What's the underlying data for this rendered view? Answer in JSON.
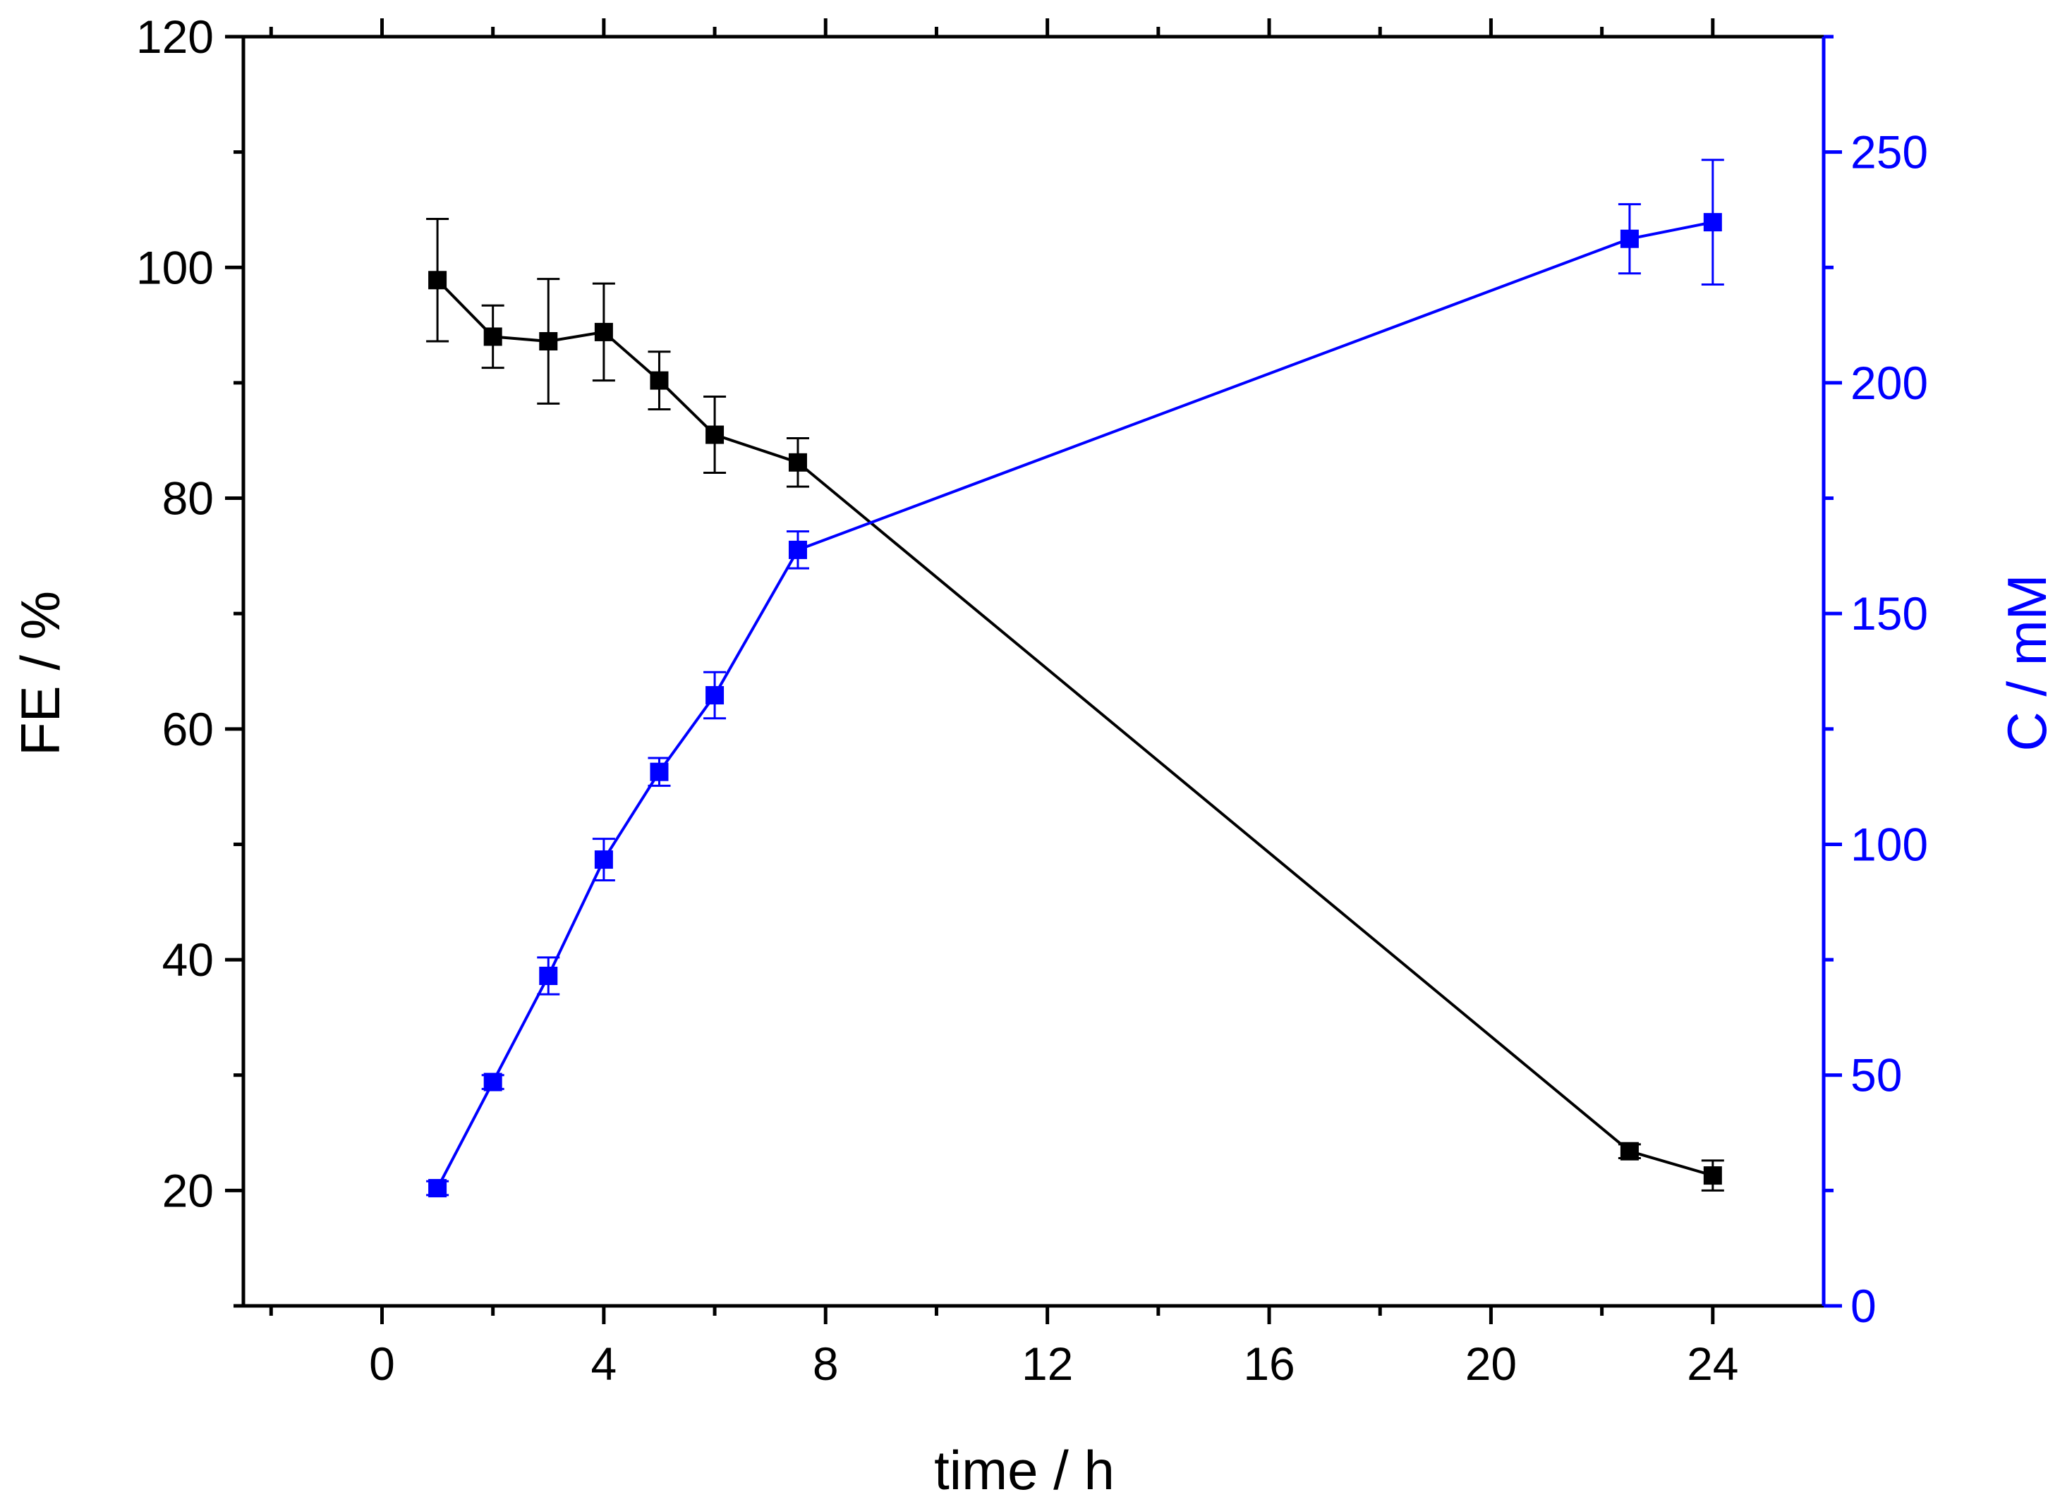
{
  "chart_data": {
    "type": "line",
    "title": "",
    "xlabel": "time / h",
    "ylabel": "FE / %",
    "y2label": "C / mM",
    "xlim": [
      -2.5,
      26
    ],
    "ylim": [
      10,
      120
    ],
    "y2lim": [
      0,
      275
    ],
    "x_ticks": [
      0,
      4,
      8,
      12,
      16,
      20,
      24
    ],
    "x_tick_labels": [
      "0",
      "4",
      "8",
      "12",
      "16",
      "20",
      "24"
    ],
    "y_ticks": [
      20,
      40,
      60,
      80,
      100,
      120
    ],
    "y_tick_labels": [
      "20",
      "40",
      "60",
      "80",
      "100",
      "120"
    ],
    "y2_ticks": [
      0,
      50,
      100,
      150,
      200,
      250
    ],
    "y2_tick_labels": [
      "0",
      "50",
      "100",
      "150",
      "200",
      "250"
    ],
    "grid": false,
    "colors": {
      "fe": "#000000",
      "conc": "#0000ff",
      "axis": "#000000",
      "axis2": "#0000ff"
    },
    "series": [
      {
        "name": "FE",
        "axis": "left",
        "color": "#000000",
        "x": [
          1,
          2,
          3,
          4,
          5,
          6,
          7.5,
          22.5,
          24
        ],
        "y": [
          98.9,
          94.0,
          93.6,
          94.4,
          90.2,
          85.5,
          83.1,
          23.4,
          21.3
        ],
        "err": [
          5.3,
          2.7,
          5.4,
          4.2,
          2.5,
          3.3,
          2.1,
          0.6,
          1.3
        ]
      },
      {
        "name": "C",
        "axis": "right",
        "color": "#0000ff",
        "x": [
          1,
          2,
          3,
          4,
          5,
          6,
          7.5,
          22.5,
          24
        ],
        "y": [
          25.5,
          48.5,
          71.5,
          96.7,
          115.7,
          132.3,
          163.8,
          231.2,
          234.8
        ],
        "err": [
          1.5,
          1.5,
          4.0,
          4.5,
          3.0,
          5.0,
          4.0,
          7.5,
          13.5
        ]
      }
    ]
  }
}
